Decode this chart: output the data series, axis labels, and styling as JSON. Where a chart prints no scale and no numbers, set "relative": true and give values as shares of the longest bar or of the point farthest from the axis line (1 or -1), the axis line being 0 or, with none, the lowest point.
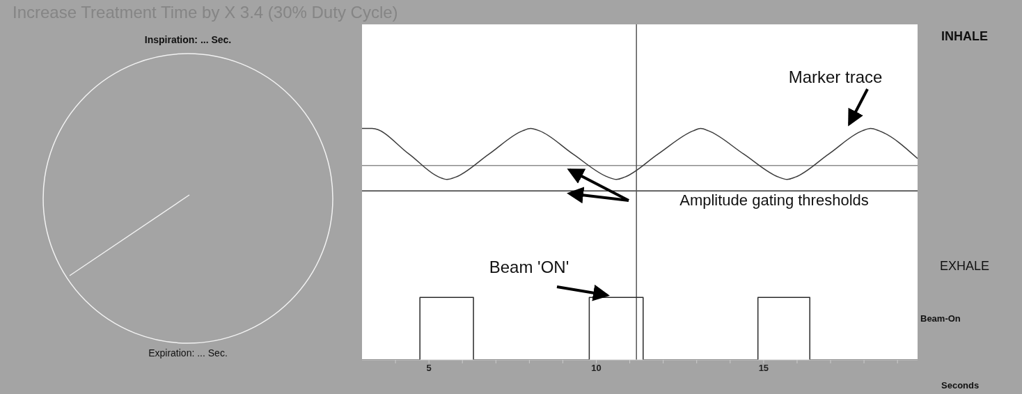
{
  "chart_data": {
    "type": "line",
    "title": "Increase Treatment Time by X 3.4 (30% Duty Cycle)",
    "xlabel": "Seconds",
    "relative": true,
    "xlim": [
      3,
      19.6
    ],
    "xticks": [
      {
        "value": 4,
        "label": null
      },
      5,
      {
        "value": 6,
        "label": null
      },
      {
        "value": 7,
        "label": null
      },
      {
        "value": 8,
        "label": null
      },
      {
        "value": 9,
        "label": null
      },
      10,
      {
        "value": 11,
        "label": null
      },
      {
        "value": 12,
        "label": null
      },
      {
        "value": 13,
        "label": null
      },
      {
        "value": 14,
        "label": null
      },
      15,
      {
        "value": 16,
        "label": null
      },
      {
        "value": 17,
        "label": null
      },
      {
        "value": 18,
        "label": null
      },
      {
        "value": 19,
        "label": null
      }
    ],
    "series": [
      {
        "color": "#3a3a3a",
        "x": [
          3.0,
          3.3,
          4.4,
          5.3,
          5.54,
          5.8,
          6.8,
          7.8,
          8.04,
          8.3,
          9.3,
          10.35,
          10.6,
          10.85,
          11.85,
          12.9,
          13.12,
          13.35,
          14.4,
          15.45,
          15.7,
          15.95,
          16.95,
          17.95,
          18.2,
          18.45,
          19.6
        ],
        "values": [
          1.0,
          1.0,
          0.89,
          0.79,
          0.78,
          0.79,
          0.89,
          0.99,
          1.0,
          0.99,
          0.89,
          0.79,
          0.78,
          0.79,
          0.89,
          0.99,
          1.0,
          0.99,
          0.89,
          0.79,
          0.78,
          0.79,
          0.89,
          0.99,
          1.0,
          0.99,
          0.87
        ]
      },
      {
        "type": "step",
        "color": "#2a2a2a",
        "x": [
          3.0,
          4.73,
          6.33,
          9.79,
          11.4,
          14.83,
          16.38,
          19.6
        ],
        "values": [
          0,
          0.27,
          0,
          0.27,
          0,
          0.27,
          0,
          0
        ]
      }
    ],
    "ref_lines": [
      {
        "axis": "y",
        "value": 0.84,
        "color": "#8c8c8c"
      },
      {
        "axis": "y",
        "value": 0.73,
        "color": "#333333"
      },
      {
        "axis": "x",
        "value": 11.2,
        "color": "#555555"
      }
    ],
    "annotations": [
      "Inspiration: ... Sec.",
      "Expiration: ... Sec.",
      "INHALE",
      "EXHALE",
      "Beam-On",
      "Amplitude gating thresholds",
      "Marker trace",
      "Beam 'ON'"
    ]
  }
}
